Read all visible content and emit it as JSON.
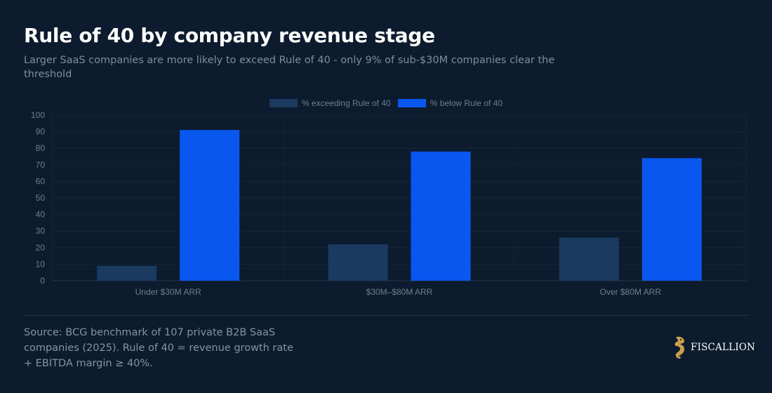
{
  "header": {
    "title": "Rule of 40 by company revenue stage",
    "subtitle": "Larger SaaS companies are more likely to exceed Rule of 40 - only 9% of sub-$30M companies clear the threshold"
  },
  "footer": {
    "source": "Source: BCG benchmark of 107 private B2B SaaS companies (2025). Rule of 40 = revenue growth rate + EBITDA margin ≥ 40%.",
    "brand": "FISCALLION"
  },
  "colors": {
    "background": "#0d1b2e",
    "exceeding": "#1b3a5f",
    "below": "#0a57ef",
    "logo_gold": "#c9a14a"
  },
  "chart_data": {
    "type": "bar",
    "categories": [
      "Under $30M ARR",
      "$30M–$80M ARR",
      "Over $80M ARR"
    ],
    "series": [
      {
        "name": "% exceeding Rule of 40",
        "values": [
          9,
          22,
          26
        ]
      },
      {
        "name": "% below Rule of 40",
        "values": [
          91,
          78,
          74
        ]
      }
    ],
    "ylim": [
      0,
      100
    ],
    "yticks": [
      0,
      10,
      20,
      30,
      40,
      50,
      60,
      70,
      80,
      90,
      100
    ],
    "xlabel": "",
    "ylabel": "",
    "grid": true,
    "legend": "top-center"
  }
}
